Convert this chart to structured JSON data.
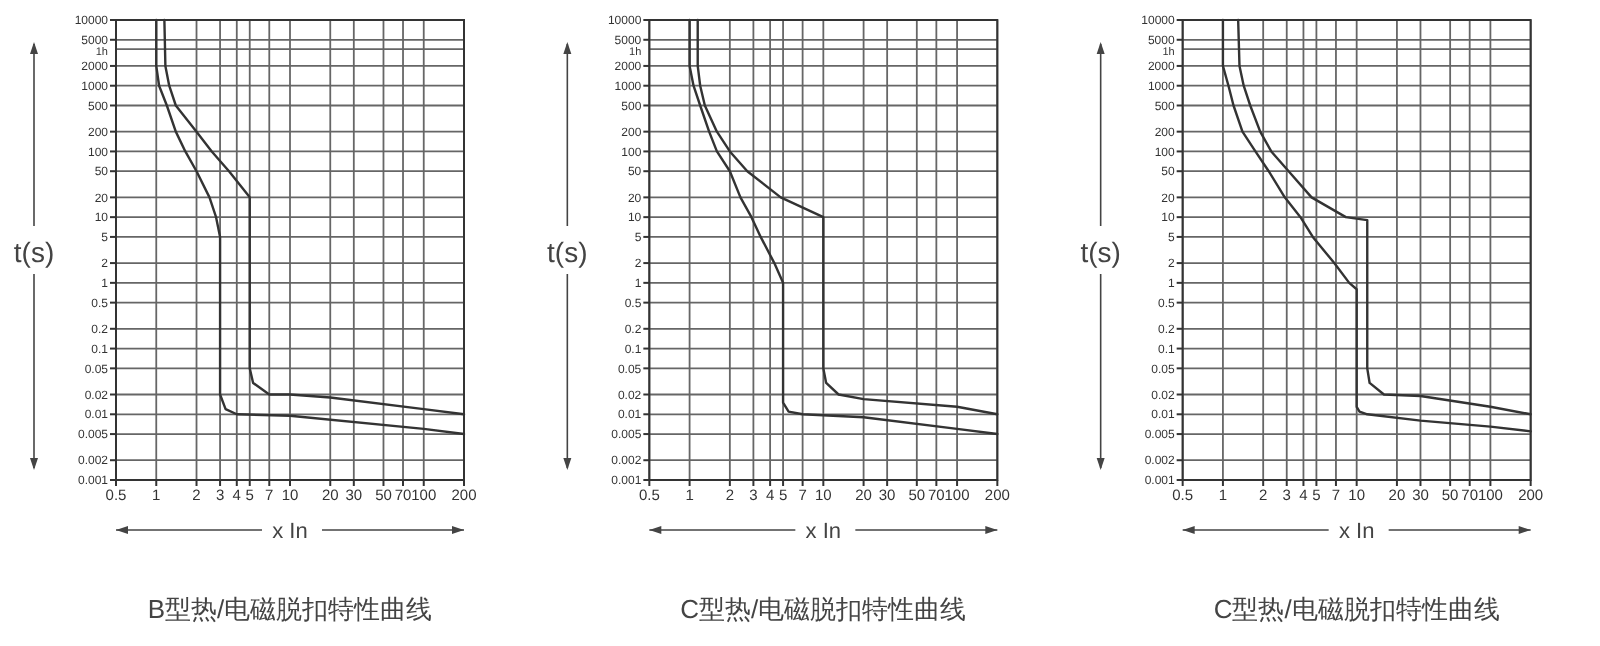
{
  "chart_data": [
    {
      "type": "line",
      "title": "B型热/电磁脱扣特性曲线",
      "xlabel": "x In",
      "ylabel": "t(s)",
      "log": "xy",
      "grid": true,
      "xlim": [
        0.5,
        200
      ],
      "xticks": [
        0.5,
        1,
        2,
        3,
        4,
        5,
        7,
        10,
        20,
        30,
        50,
        70,
        100,
        200
      ],
      "ylim": [
        0.001,
        10000
      ],
      "yticks": [
        10000,
        5000,
        2000,
        1000,
        500,
        200,
        100,
        50,
        20,
        10,
        5,
        2,
        1,
        0.5,
        0.2,
        0.1,
        0.05,
        0.02,
        0.01,
        0.005,
        0.002,
        0.001
      ],
      "ref_lines": [
        {
          "axis": "y",
          "value": 3600,
          "label": "1h",
          "color": "#666666"
        }
      ],
      "series": [
        {
          "color": "#333333",
          "x": [
            1.15,
            1.17,
            1.25,
            1.4,
            2,
            2.6,
            3.5,
            5,
            5,
            5.3,
            7,
            10,
            20,
            100,
            200
          ],
          "values": [
            10000,
            2000,
            1000,
            500,
            200,
            100,
            50,
            20,
            0.05,
            0.03,
            0.02,
            0.02,
            0.018,
            0.012,
            0.01
          ]
        },
        {
          "color": "#333333",
          "x": [
            1,
            1,
            1.05,
            1.2,
            1.4,
            1.65,
            2,
            2.5,
            2.8,
            3,
            3,
            3.3,
            4,
            10,
            100,
            200
          ],
          "values": [
            10000,
            2000,
            1000,
            500,
            200,
            100,
            50,
            20,
            10,
            5,
            0.02,
            0.012,
            0.01,
            0.0095,
            0.006,
            0.005
          ]
        }
      ]
    },
    {
      "type": "line",
      "title": "C型热/电磁脱扣特性曲线",
      "xlabel": "x In",
      "ylabel": "t(s)",
      "log": "xy",
      "grid": true,
      "xlim": [
        0.5,
        200
      ],
      "xticks": [
        0.5,
        1,
        2,
        3,
        4,
        5,
        7,
        10,
        20,
        30,
        50,
        70,
        100,
        200
      ],
      "ylim": [
        0.001,
        10000
      ],
      "yticks": [
        10000,
        5000,
        2000,
        1000,
        500,
        200,
        100,
        50,
        20,
        10,
        5,
        2,
        1,
        0.5,
        0.2,
        0.1,
        0.05,
        0.02,
        0.01,
        0.005,
        0.002,
        0.001
      ],
      "ref_lines": [
        {
          "axis": "y",
          "value": 3600,
          "label": "1h",
          "color": "#666666"
        }
      ],
      "series": [
        {
          "color": "#333333",
          "x": [
            1.15,
            1.15,
            1.2,
            1.3,
            1.6,
            2,
            2.7,
            4.8,
            10,
            10,
            10.5,
            13,
            20,
            100,
            200
          ],
          "values": [
            10000,
            2000,
            1000,
            500,
            200,
            100,
            50,
            20,
            10,
            0.05,
            0.03,
            0.02,
            0.017,
            0.013,
            0.01
          ]
        },
        {
          "color": "#333333",
          "x": [
            1,
            1,
            1.07,
            1.2,
            1.4,
            1.6,
            2,
            2.4,
            2.9,
            3.4,
            4.3,
            5,
            5,
            5.5,
            7,
            20,
            100,
            200
          ],
          "values": [
            10000,
            2000,
            1000,
            500,
            200,
            100,
            50,
            20,
            10,
            5,
            2,
            1,
            0.015,
            0.011,
            0.01,
            0.009,
            0.006,
            0.005
          ]
        }
      ]
    },
    {
      "type": "line",
      "title": "C型热/电磁脱扣特性曲线",
      "xlabel": "x In",
      "ylabel": "t(s)",
      "log": "xy",
      "grid": true,
      "xlim": [
        0.5,
        200
      ],
      "xticks": [
        0.5,
        1,
        2,
        3,
        4,
        5,
        7,
        10,
        20,
        30,
        50,
        70,
        100,
        200
      ],
      "ylim": [
        0.001,
        10000
      ],
      "yticks": [
        10000,
        5000,
        2000,
        1000,
        500,
        200,
        100,
        50,
        20,
        10,
        5,
        2,
        1,
        0.5,
        0.2,
        0.1,
        0.05,
        0.02,
        0.01,
        0.005,
        0.002,
        0.001
      ],
      "ref_lines": [
        {
          "axis": "y",
          "value": 3600,
          "label": "1h",
          "color": "#666666"
        }
      ],
      "series": [
        {
          "color": "#333333",
          "x": [
            1.3,
            1.33,
            1.43,
            1.6,
            1.9,
            2.3,
            3.1,
            4.6,
            8.3,
            12,
            12,
            12.5,
            16,
            30,
            100,
            200
          ],
          "values": [
            10000,
            2000,
            1000,
            500,
            200,
            100,
            50,
            20,
            10,
            9,
            0.05,
            0.03,
            0.02,
            0.019,
            0.013,
            0.01
          ]
        },
        {
          "color": "#333333",
          "x": [
            1,
            1,
            1.1,
            1.2,
            1.4,
            1.75,
            2.2,
            2.9,
            3.8,
            4.7,
            6.8,
            8.8,
            10,
            10,
            10.5,
            12,
            30,
            100,
            200
          ],
          "values": [
            10000,
            2000,
            1000,
            500,
            200,
            100,
            50,
            20,
            10,
            5,
            2,
            1,
            0.8,
            0.013,
            0.011,
            0.01,
            0.008,
            0.0065,
            0.0055
          ]
        }
      ]
    }
  ]
}
